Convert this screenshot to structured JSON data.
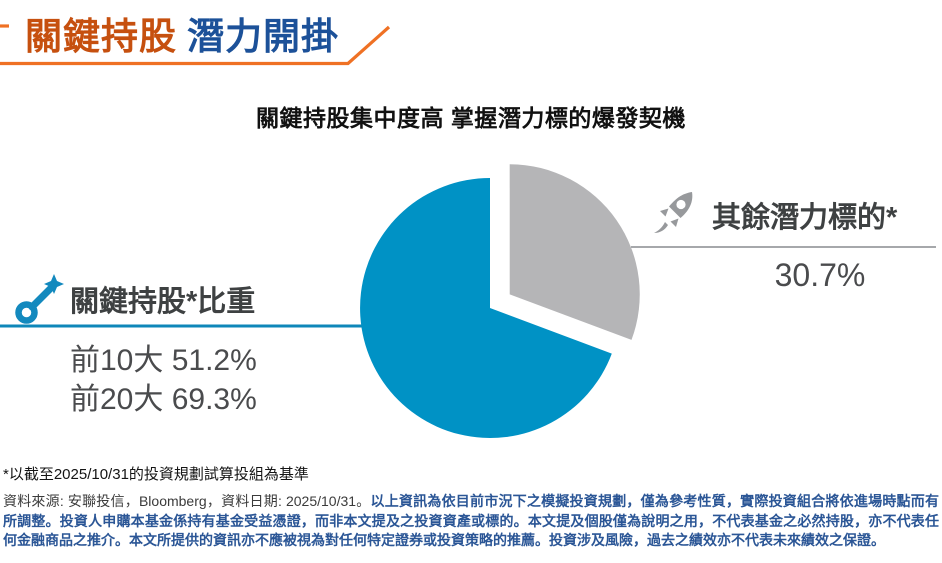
{
  "header": {
    "title_accent": "關鍵持股",
    "title_rest": "潛力開掛"
  },
  "chart_title": "關鍵持股集中度高 掌握潛力標的爆發契機",
  "left_callout": {
    "icon": "key-icon",
    "label": "關鍵持股*比重",
    "stats": [
      "前10大 51.2%",
      "前20大 69.3%"
    ]
  },
  "right_callout": {
    "icon": "rocket-icon",
    "label": "其餘潛力標的*",
    "value": "30.7%"
  },
  "footnote": "*以截至2025/10/31的投資規劃試算投組為基準",
  "disclaimer": {
    "source": "資料來源: 安聯投信，Bloomberg，資料日期: 2025/10/31。",
    "body": "以上資訊為依目前市況下之模擬投資規劃，僅為參考性質，實際投資組合將依進場時點而有所調整。投資人申購本基金係持有基金受益憑證，而非本文提及之投資資產或標的。本文提及個股僅為說明之用，不代表基金之必然持股，亦不代表任何金融商品之推介。本文所提供的資訊亦不應被視為對任何特定證券或投資策略的推薦。投資涉及風險，過去之績效亦不代表未來績效之保證。"
  },
  "colors": {
    "title_orange": "#C6500F",
    "title_blue": "#1C5199",
    "rule_orange": "#EF7124",
    "pie_blue": "#0092C5",
    "pie_gray": "#B5B5B7",
    "line_blue": "#0E87B9",
    "line_gray": "#A6A8AB",
    "icon_blue": "#1389BE",
    "icon_gray": "#97999C",
    "text_dark": "#3E4142",
    "stat_gray": "#4A4B4D",
    "navy_bold": "#2B5696"
  },
  "chart_data": {
    "type": "pie",
    "title": "關鍵持股集中度高 掌握潛力標的爆發契機",
    "series": [
      {
        "name": "其餘潛力標的*",
        "value": 30.7,
        "color": "#B5B5B7",
        "exploded": true
      },
      {
        "name": "關鍵持股*比重",
        "value": 69.3,
        "color": "#0092C5",
        "exploded": false
      }
    ],
    "start_angle_deg": 0,
    "direction": "clockwise",
    "legend": "none",
    "annotations": [
      {
        "side": "left",
        "label": "關鍵持股*比重",
        "lines": [
          "前10大 51.2%",
          "前20大 69.3%"
        ]
      },
      {
        "side": "right",
        "label": "其餘潛力標的*",
        "lines": [
          "30.7%"
        ]
      }
    ]
  }
}
